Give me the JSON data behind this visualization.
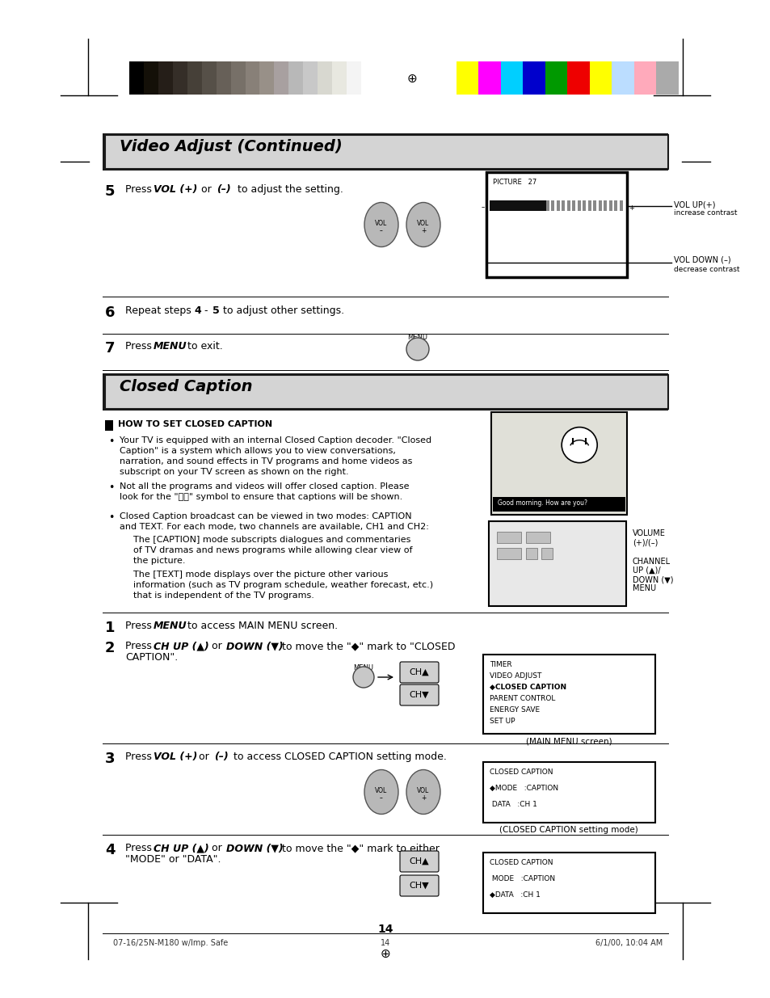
{
  "page_bg": "#ffffff",
  "page_width": 9.54,
  "page_height": 12.35,
  "dpi": 100,
  "gray_colors": [
    "#000000",
    "#141008",
    "#251e18",
    "#352e28",
    "#464038",
    "#565048",
    "#676058",
    "#777068",
    "#888078",
    "#989088",
    "#a8a0a0",
    "#b8b8b8",
    "#c8c8c8",
    "#d8d8d0",
    "#e8e8e0",
    "#f4f4f4",
    "#ffffff"
  ],
  "color_right": [
    "#ffff00",
    "#ff00ff",
    "#00cfff",
    "#0000cc",
    "#009900",
    "#ee0000",
    "#ffff00",
    "#bbddff",
    "#ffaabb",
    "#aaaaaa"
  ],
  "section1_title": "Video Adjust (Continued)",
  "section2_title": "Closed Caption",
  "menu_items": [
    "TIMER",
    "VIDEO ADJUST",
    "◆CLOSED CAPTION",
    "PARENT CONTROL",
    "ENERGY SAVE",
    "SET UP"
  ],
  "cc_items1": [
    "CLOSED CAPTION",
    "◆MODE   :CAPTION",
    " DATA   :CH 1"
  ],
  "cc_items2": [
    "CLOSED CAPTION",
    " MODE   :CAPTION",
    "◆DATA   :CH 1"
  ],
  "page_num": "14",
  "footer_left": "07-16/25N-M180 w/Imp. Safe",
  "footer_mid": "14",
  "footer_right": "6/1/00, 10:04 AM"
}
